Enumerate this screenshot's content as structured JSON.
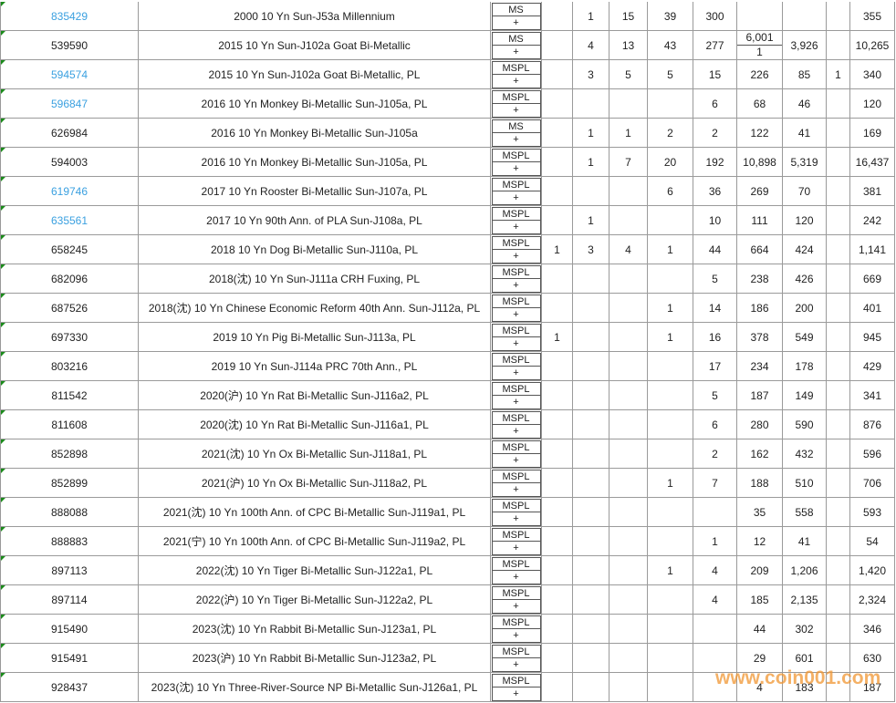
{
  "table": {
    "rows": [
      {
        "id": "835429",
        "linked": true,
        "description": "2000 10 Yn Sun-J53a Millennium",
        "grade": "MS",
        "sub": "+",
        "cells": [
          null,
          "1",
          "15",
          "39",
          "300",
          null,
          null,
          null,
          "355"
        ]
      },
      {
        "id": "539590",
        "linked": false,
        "description": "2015 10 Yn Sun-J102a Goat Bi-Metallic",
        "grade": "MS",
        "sub": "+",
        "cells": [
          null,
          "4",
          "13",
          "43",
          "277",
          [
            "6,001",
            "1"
          ],
          "3,926",
          null,
          "10,265"
        ]
      },
      {
        "id": "594574",
        "linked": true,
        "description": "2015 10 Yn Sun-J102a Goat Bi-Metallic, PL",
        "grade": "MSPL",
        "sub": "+",
        "cells": [
          null,
          "3",
          "5",
          "5",
          "15",
          "226",
          "85",
          "1",
          "340"
        ]
      },
      {
        "id": "596847",
        "linked": true,
        "description": "2016 10 Yn Monkey Bi-Metallic Sun-J105a, PL",
        "grade": "MSPL",
        "sub": "+",
        "cells": [
          null,
          null,
          null,
          null,
          "6",
          "68",
          "46",
          null,
          "120"
        ]
      },
      {
        "id": "626984",
        "linked": false,
        "description": "2016 10 Yn Monkey Bi-Metallic Sun-J105a",
        "grade": "MS",
        "sub": "+",
        "cells": [
          null,
          "1",
          "1",
          "2",
          "2",
          "122",
          "41",
          null,
          "169"
        ]
      },
      {
        "id": "594003",
        "linked": false,
        "description": "2016 10 Yn Monkey Bi-Metallic Sun-J105a, PL",
        "grade": "MSPL",
        "sub": "+",
        "cells": [
          null,
          "1",
          "7",
          "20",
          "192",
          "10,898",
          "5,319",
          null,
          "16,437"
        ]
      },
      {
        "id": "619746",
        "linked": true,
        "description": "2017 10 Yn Rooster Bi-Metallic Sun-J107a, PL",
        "grade": "MSPL",
        "sub": "+",
        "cells": [
          null,
          null,
          null,
          "6",
          "36",
          "269",
          "70",
          null,
          "381"
        ]
      },
      {
        "id": "635561",
        "linked": true,
        "description": "2017 10 Yn 90th Ann. of PLA Sun-J108a, PL",
        "grade": "MSPL",
        "sub": "+",
        "cells": [
          null,
          "1",
          null,
          null,
          "10",
          "111",
          "120",
          null,
          "242"
        ]
      },
      {
        "id": "658245",
        "linked": false,
        "description": "2018 10 Yn Dog Bi-Metallic Sun-J110a, PL",
        "grade": "MSPL",
        "sub": "+",
        "cells": [
          "1",
          "3",
          "4",
          "1",
          "44",
          "664",
          "424",
          null,
          "1,141"
        ]
      },
      {
        "id": "682096",
        "linked": false,
        "description": "2018(沈) 10 Yn Sun-J111a CRH Fuxing, PL",
        "grade": "MSPL",
        "sub": "+",
        "cells": [
          null,
          null,
          null,
          null,
          "5",
          "238",
          "426",
          null,
          "669"
        ]
      },
      {
        "id": "687526",
        "linked": false,
        "description": "2018(沈) 10 Yn Chinese Economic Reform 40th Ann. Sun-J112a, PL",
        "grade": "MSPL",
        "sub": "+",
        "cells": [
          null,
          null,
          null,
          "1",
          "14",
          "186",
          "200",
          null,
          "401"
        ]
      },
      {
        "id": "697330",
        "linked": false,
        "description": "2019 10 Yn Pig Bi-Metallic Sun-J113a, PL",
        "grade": "MSPL",
        "sub": "+",
        "cells": [
          "1",
          null,
          null,
          "1",
          "16",
          "378",
          "549",
          null,
          "945"
        ]
      },
      {
        "id": "803216",
        "linked": false,
        "description": "2019 10 Yn Sun-J114a PRC 70th Ann., PL",
        "grade": "MSPL",
        "sub": "+",
        "cells": [
          null,
          null,
          null,
          null,
          "17",
          "234",
          "178",
          null,
          "429"
        ]
      },
      {
        "id": "811542",
        "linked": false,
        "description": "2020(沪) 10 Yn Rat Bi-Metallic Sun-J116a2, PL",
        "grade": "MSPL",
        "sub": "+",
        "cells": [
          null,
          null,
          null,
          null,
          "5",
          "187",
          "149",
          null,
          "341"
        ]
      },
      {
        "id": "811608",
        "linked": false,
        "description": "2020(沈) 10 Yn Rat Bi-Metallic Sun-J116a1, PL",
        "grade": "MSPL",
        "sub": "+",
        "cells": [
          null,
          null,
          null,
          null,
          "6",
          "280",
          "590",
          null,
          "876"
        ]
      },
      {
        "id": "852898",
        "linked": false,
        "description": "2021(沈) 10 Yn Ox Bi-Metallic Sun-J118a1, PL",
        "grade": "MSPL",
        "sub": "+",
        "cells": [
          null,
          null,
          null,
          null,
          "2",
          "162",
          "432",
          null,
          "596"
        ]
      },
      {
        "id": "852899",
        "linked": false,
        "description": "2021(沪) 10 Yn Ox Bi-Metallic Sun-J118a2, PL",
        "grade": "MSPL",
        "sub": "+",
        "cells": [
          null,
          null,
          null,
          "1",
          "7",
          "188",
          "510",
          null,
          "706"
        ]
      },
      {
        "id": "888088",
        "linked": false,
        "description": "2021(沈) 10 Yn 100th Ann. of CPC Bi-Metallic Sun-J119a1, PL",
        "grade": "MSPL",
        "sub": "+",
        "cells": [
          null,
          null,
          null,
          null,
          null,
          "35",
          "558",
          null,
          "593"
        ]
      },
      {
        "id": "888883",
        "linked": false,
        "description": "2021(宁) 10 Yn 100th Ann. of CPC Bi-Metallic Sun-J119a2, PL",
        "grade": "MSPL",
        "sub": "+",
        "cells": [
          null,
          null,
          null,
          null,
          "1",
          "12",
          "41",
          null,
          "54"
        ]
      },
      {
        "id": "897113",
        "linked": false,
        "description": "2022(沈) 10 Yn Tiger Bi-Metallic Sun-J122a1, PL",
        "grade": "MSPL",
        "sub": "+",
        "cells": [
          null,
          null,
          null,
          "1",
          "4",
          "209",
          "1,206",
          null,
          "1,420"
        ]
      },
      {
        "id": "897114",
        "linked": false,
        "description": "2022(沪) 10 Yn Tiger Bi-Metallic Sun-J122a2, PL",
        "grade": "MSPL",
        "sub": "+",
        "cells": [
          null,
          null,
          null,
          null,
          "4",
          "185",
          "2,135",
          null,
          "2,324"
        ]
      },
      {
        "id": "915490",
        "linked": false,
        "description": "2023(沈) 10 Yn Rabbit Bi-Metallic Sun-J123a1, PL",
        "grade": "MSPL",
        "sub": "+",
        "cells": [
          null,
          null,
          null,
          null,
          null,
          "44",
          "302",
          null,
          "346"
        ]
      },
      {
        "id": "915491",
        "linked": false,
        "description": "2023(沪) 10 Yn Rabbit Bi-Metallic Sun-J123a2, PL",
        "grade": "MSPL",
        "sub": "+",
        "cells": [
          null,
          null,
          null,
          null,
          null,
          "29",
          "601",
          null,
          "630"
        ]
      },
      {
        "id": "928437",
        "linked": false,
        "description": "2023(沈) 10 Yn Three-River-Source NP Bi-Metallic Sun-J126a1, PL",
        "grade": "MSPL",
        "sub": "+",
        "cells": [
          null,
          null,
          null,
          null,
          null,
          "4",
          "183",
          null,
          "187"
        ]
      }
    ]
  },
  "watermark": "www.coin001.com"
}
